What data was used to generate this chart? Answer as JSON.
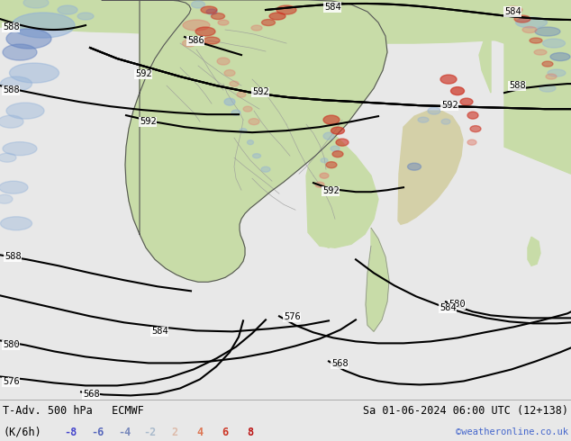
{
  "title_left": "T-Adv. 500 hPa   ECMWF",
  "title_right": "Sa 01-06-2024 06:00 UTC (12+138)",
  "legend_label": "(K/6h)",
  "legend_values": [
    -8,
    -6,
    -4,
    -2,
    2,
    4,
    6,
    8
  ],
  "neg_colors": [
    "#3b3bcc",
    "#5566cc",
    "#7788cc",
    "#99aacc"
  ],
  "pos_colors": [
    "#ccaa99",
    "#cc7755",
    "#cc4433",
    "#cc2211"
  ],
  "watermark": "©weatheronline.co.uk",
  "watermark_color": "#4466cc",
  "ocean_color": "#e8e8ec",
  "land_color": "#c8dca8",
  "border_color": "#888888",
  "thick_border_color": "#333333",
  "figsize": [
    6.34,
    4.9
  ],
  "dpi": 100
}
